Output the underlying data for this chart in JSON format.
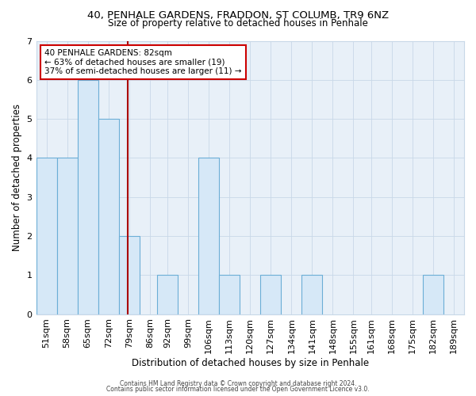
{
  "title1": "40, PENHALE GARDENS, FRADDON, ST COLUMB, TR9 6NZ",
  "title2": "Size of property relative to detached houses in Penhale",
  "xlabel": "Distribution of detached houses by size in Penhale",
  "ylabel": "Number of detached properties",
  "bin_labels": [
    "51sqm",
    "58sqm",
    "65sqm",
    "72sqm",
    "79sqm",
    "86sqm",
    "92sqm",
    "99sqm",
    "106sqm",
    "113sqm",
    "120sqm",
    "127sqm",
    "134sqm",
    "141sqm",
    "148sqm",
    "155sqm",
    "161sqm",
    "168sqm",
    "175sqm",
    "182sqm",
    "189sqm"
  ],
  "bin_starts": [
    51,
    58,
    65,
    72,
    79,
    86,
    92,
    99,
    106,
    113,
    120,
    127,
    134,
    141,
    148,
    155,
    161,
    168,
    175,
    182,
    189
  ],
  "bar_heights": [
    4,
    4,
    6,
    5,
    2,
    0,
    1,
    0,
    4,
    1,
    0,
    1,
    0,
    1,
    0,
    0,
    0,
    0,
    0,
    1,
    0
  ],
  "bar_color": "#d6e8f7",
  "bar_edge_color": "#6baed6",
  "property_size": 82,
  "vline_color": "#aa0000",
  "annotation_text": "40 PENHALE GARDENS: 82sqm\n← 63% of detached houses are smaller (19)\n37% of semi-detached houses are larger (11) →",
  "annotation_box_color": "#ffffff",
  "annotation_box_edge": "#cc0000",
  "ylim": [
    0,
    7
  ],
  "yticks": [
    0,
    1,
    2,
    3,
    4,
    5,
    6,
    7
  ],
  "grid_color": "#c8d8e8",
  "footer1": "Contains HM Land Registry data © Crown copyright and database right 2024.",
  "footer2": "Contains public sector information licensed under the Open Government Licence v3.0.",
  "bg_color": "#ffffff",
  "plot_bg_color": "#e8f0f8"
}
